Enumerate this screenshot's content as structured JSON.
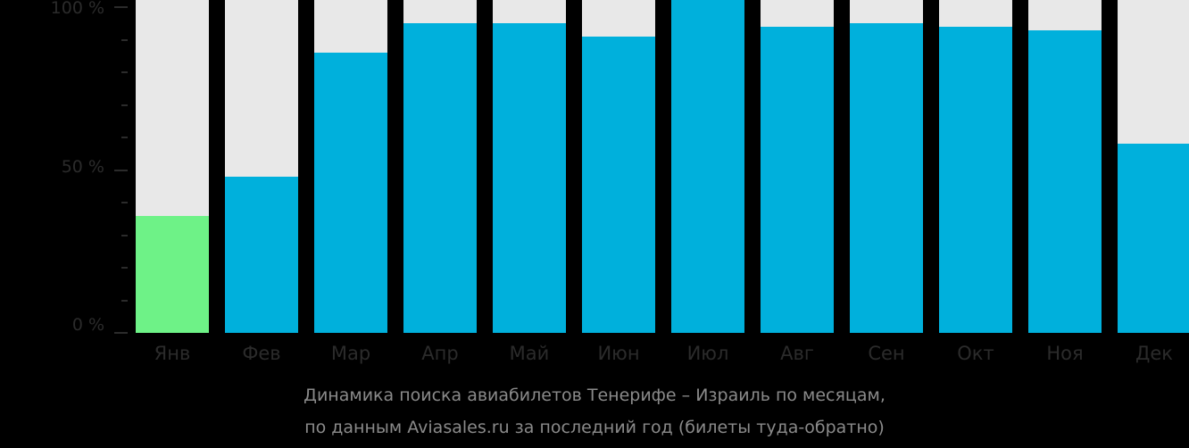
{
  "chart_data": {
    "type": "bar",
    "title": "Динамика поиска авиабилетов Тенерифе – Израиль по месяцам, по данным Aviasales.ru за последний год (билеты туда-обратно)",
    "xlabel": "",
    "ylabel": "",
    "ylim": [
      0,
      100
    ],
    "yticks": [
      "0 %",
      "50 %",
      "100 %"
    ],
    "categories": [
      "Янв",
      "Фев",
      "Мар",
      "Апр",
      "Май",
      "Июн",
      "Июл",
      "Авг",
      "Сен",
      "Окт",
      "Ноя",
      "Дек"
    ],
    "values": [
      36,
      48,
      86,
      95,
      95,
      91,
      100,
      94,
      95,
      94,
      93,
      58
    ],
    "highlight_index": 0,
    "colors": {
      "bar": "#00b0dc",
      "highlight": "#6ef287",
      "background_bar": "#e8e8e8"
    },
    "grid": false,
    "legend": null
  },
  "axis": {
    "y100": "100 %",
    "y50": "50 %",
    "y0": "0 %"
  },
  "caption": {
    "line1": "Динамика поиска авиабилетов Тенерифе – Израиль по месяцам,",
    "line2": "по данным Aviasales.ru за последний год (билеты туда-обратно)"
  }
}
